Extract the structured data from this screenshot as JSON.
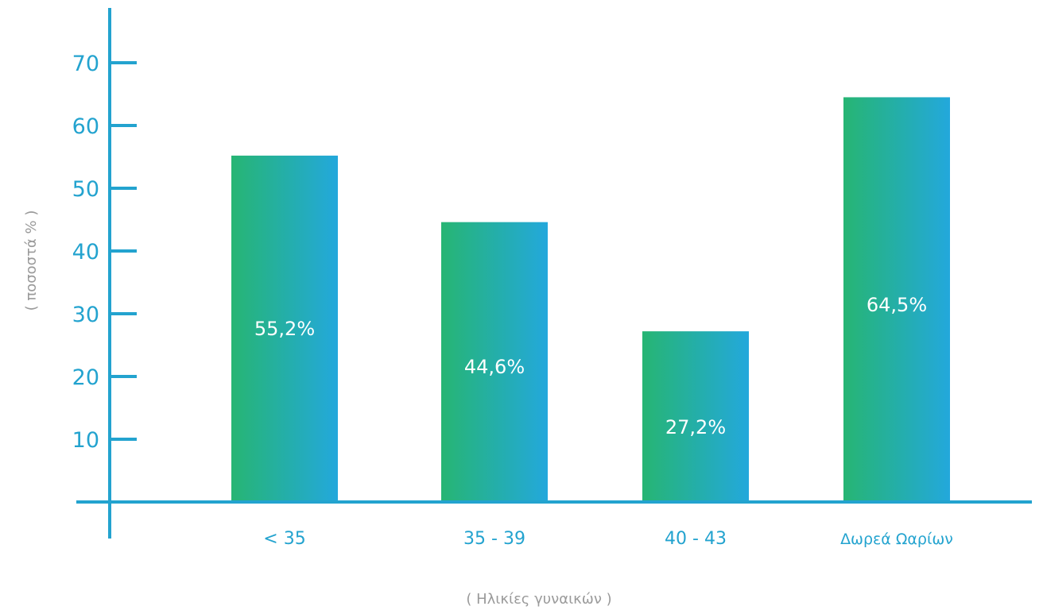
{
  "chart_data": {
    "type": "bar",
    "categories": [
      "< 35",
      "35 - 39",
      "40 - 43",
      "Δωρεά Ωαρίων"
    ],
    "values": [
      55.2,
      44.6,
      27.2,
      64.5
    ],
    "value_labels": [
      "55,2%",
      "44,6%",
      "27,2%",
      "64,5%"
    ],
    "xlabel": "( Ηλικίες γυναικών )",
    "ylabel": "( ποσοστά % )",
    "ylim": [
      0,
      80
    ],
    "yticks": [
      10,
      20,
      30,
      40,
      50,
      60,
      70
    ],
    "grid": false,
    "legend": "none"
  },
  "colors": {
    "axis": "#23a3cf",
    "bar_gradient_start": "#26b573",
    "bar_gradient_end": "#23a8dc",
    "axis_title": "#9a9a9a",
    "data_label": "#ffffff"
  }
}
